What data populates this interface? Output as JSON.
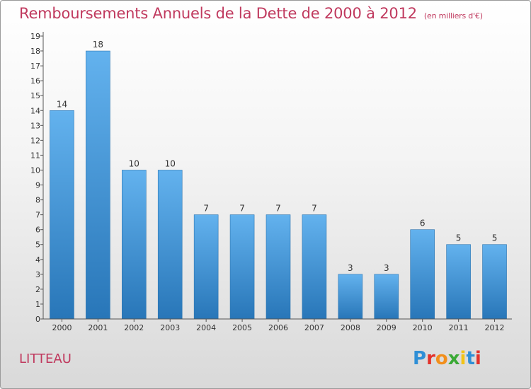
{
  "title": "Remboursements Annuels de la Dette de 2000 à 2012",
  "unit": "(en milliers d'€)",
  "commune": "LITTEAU",
  "logo": {
    "text": "Proxiti",
    "colors": [
      "#2f8fd6",
      "#e3322b",
      "#f28f1c",
      "#3aa935",
      "#f2c318",
      "#2f8fd6",
      "#e3322b"
    ]
  },
  "colors": {
    "bar": "#3a8fd0",
    "bar_light": "#63b2ee",
    "bar_dark": "#2876b8",
    "title": "#c0395e"
  },
  "chart_data": {
    "type": "bar",
    "title": "Remboursements Annuels de la Dette de 2000 à 2012",
    "unit": "(en milliers d'€)",
    "categories": [
      "2000",
      "2001",
      "2002",
      "2003",
      "2004",
      "2005",
      "2006",
      "2007",
      "2008",
      "2009",
      "2010",
      "2011",
      "2012"
    ],
    "values": [
      14,
      18,
      10,
      10,
      7,
      7,
      7,
      7,
      3,
      3,
      6,
      5,
      5
    ],
    "ylim": [
      0,
      19
    ],
    "yticks": [
      0,
      1,
      2,
      3,
      4,
      5,
      6,
      7,
      8,
      9,
      10,
      11,
      12,
      13,
      14,
      15,
      16,
      17,
      18,
      19
    ],
    "grid": false,
    "data_labels": true
  }
}
